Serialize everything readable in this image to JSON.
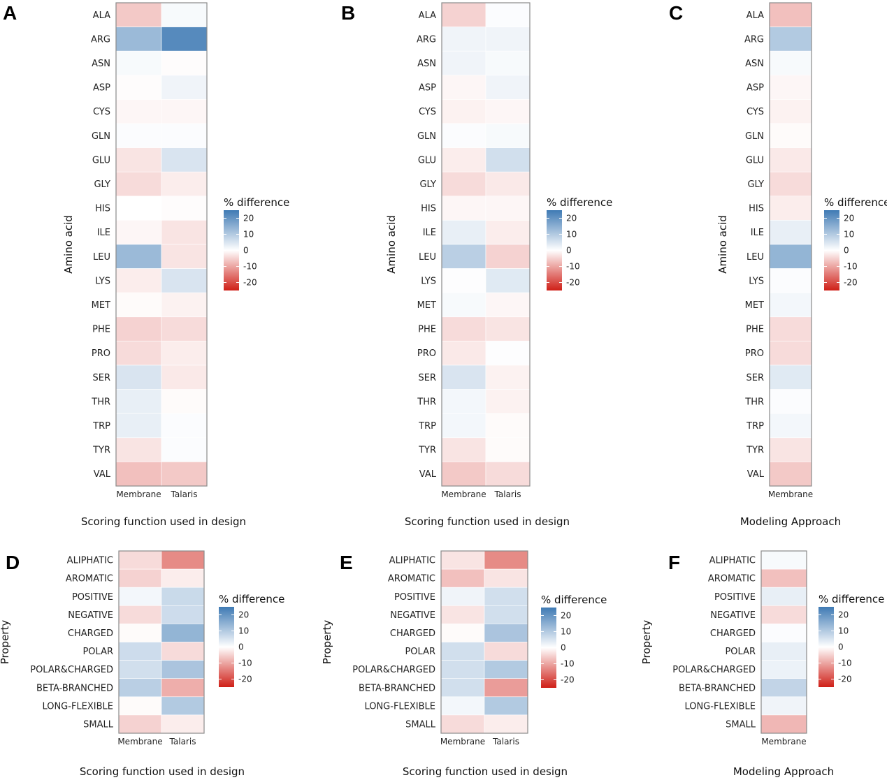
{
  "legend": {
    "title": "% difference",
    "ticks": [
      "20",
      "10",
      "0",
      "-10",
      "-20"
    ],
    "tick_values": [
      20,
      10,
      0,
      -10,
      -20
    ],
    "range": [
      -25,
      25
    ],
    "colors": {
      "high": "#3f7ab4",
      "mid": "#ffffff",
      "low": "#cf1f17"
    }
  },
  "panels": [
    {
      "letter": "A",
      "ylabel": "Amino acid",
      "xlabel": "Scoring function used in design",
      "chart_data": {
        "type": "heatmap",
        "x": [
          "Membrane",
          "Talaris"
        ],
        "y": [
          "ALA",
          "ARG",
          "ASN",
          "ASP",
          "CYS",
          "GLN",
          "GLU",
          "GLY",
          "HIS",
          "ILE",
          "LEU",
          "LYS",
          "MET",
          "PHE",
          "PRO",
          "SER",
          "THR",
          "TRP",
          "TYR",
          "VAL"
        ],
        "values": [
          [
            -6,
            1
          ],
          [
            13,
            22
          ],
          [
            1,
            -0.3
          ],
          [
            -0.3,
            2
          ],
          [
            -1,
            -1
          ],
          [
            0.5,
            0.5
          ],
          [
            -3,
            5
          ],
          [
            -4,
            -2
          ],
          [
            0,
            -0.3
          ],
          [
            -1,
            -3
          ],
          [
            13,
            -3
          ],
          [
            -2,
            5
          ],
          [
            -0.5,
            -1.5
          ],
          [
            -5,
            -4
          ],
          [
            -4,
            -2
          ],
          [
            5,
            -2.5
          ],
          [
            3,
            -0.5
          ],
          [
            3,
            0.5
          ],
          [
            -3,
            0.5
          ],
          [
            -7,
            -6
          ]
        ]
      }
    },
    {
      "letter": "B",
      "ylabel": "Amino acid",
      "xlabel": "Scoring function used in design",
      "chart_data": {
        "type": "heatmap",
        "x": [
          "Membrane",
          "Talaris"
        ],
        "y": [
          "ALA",
          "ARG",
          "ASN",
          "ASP",
          "CYS",
          "GLN",
          "GLU",
          "GLY",
          "HIS",
          "ILE",
          "LEU",
          "LYS",
          "MET",
          "PHE",
          "PRO",
          "SER",
          "THR",
          "TRP",
          "TYR",
          "VAL"
        ],
        "values": [
          [
            -5,
            0.5
          ],
          [
            2,
            2
          ],
          [
            2,
            1
          ],
          [
            -1,
            2
          ],
          [
            -1.5,
            -1
          ],
          [
            0.5,
            1
          ],
          [
            -2,
            6
          ],
          [
            -4,
            -2.5
          ],
          [
            -1,
            -1
          ],
          [
            3,
            -2
          ],
          [
            9,
            -5
          ],
          [
            0.3,
            4
          ],
          [
            1,
            -1
          ],
          [
            -4,
            -3
          ],
          [
            -2.5,
            0.3
          ],
          [
            5,
            -1.5
          ],
          [
            1.5,
            -1.5
          ],
          [
            1.5,
            -0.5
          ],
          [
            -3,
            -0.5
          ],
          [
            -6,
            -4
          ]
        ]
      }
    },
    {
      "letter": "C",
      "ylabel": "Amino acid",
      "xlabel": "Modeling Approach",
      "chart_data": {
        "type": "heatmap",
        "x": [
          "Membrane"
        ],
        "y": [
          "ALA",
          "ARG",
          "ASN",
          "ASP",
          "CYS",
          "GLN",
          "GLU",
          "GLY",
          "HIS",
          "ILE",
          "LEU",
          "LYS",
          "MET",
          "PHE",
          "PRO",
          "SER",
          "THR",
          "TRP",
          "TYR",
          "VAL"
        ],
        "values": [
          [
            -7
          ],
          [
            10
          ],
          [
            1
          ],
          [
            -1
          ],
          [
            -1.5
          ],
          [
            -0.5
          ],
          [
            -2.5
          ],
          [
            -4
          ],
          [
            -2
          ],
          [
            3
          ],
          [
            14
          ],
          [
            0.5
          ],
          [
            1.5
          ],
          [
            -4
          ],
          [
            -4
          ],
          [
            4
          ],
          [
            0.5
          ],
          [
            1.5
          ],
          [
            -3
          ],
          [
            -6
          ]
        ]
      }
    },
    {
      "letter": "D",
      "ylabel": "Property",
      "xlabel": "Scoring function used in design",
      "chart_data": {
        "type": "heatmap",
        "x": [
          "Membrane",
          "Talaris"
        ],
        "y": [
          "ALIPHATIC",
          "AROMATIC",
          "POSITIVE",
          "NEGATIVE",
          "CHARGED",
          "POLAR",
          "POLAR&CHARGED",
          "BETA-BRANCHED",
          "LONG-FLEXIBLE",
          "SMALL"
        ],
        "values": [
          [
            -4,
            -13
          ],
          [
            -5,
            -2
          ],
          [
            1.5,
            7
          ],
          [
            -4,
            6.5
          ],
          [
            -0.5,
            14
          ],
          [
            6.5,
            -4
          ],
          [
            6,
            11
          ],
          [
            9,
            -9
          ],
          [
            -0.5,
            10
          ],
          [
            -5,
            -2
          ]
        ]
      }
    },
    {
      "letter": "E",
      "ylabel": "Property",
      "xlabel": "Scoring function used in design",
      "chart_data": {
        "type": "heatmap",
        "x": [
          "Membrane",
          "Talaris"
        ],
        "y": [
          "ALIPHATIC",
          "AROMATIC",
          "POSITIVE",
          "NEGATIVE",
          "CHARGED",
          "POLAR",
          "POLAR&CHARGED",
          "BETA-BRANCHED",
          "LONG-FLEXIBLE",
          "SMALL"
        ],
        "values": [
          [
            -3,
            -13
          ],
          [
            -7,
            -3
          ],
          [
            2,
            6
          ],
          [
            -3,
            6
          ],
          [
            -0.5,
            11
          ],
          [
            6,
            -4
          ],
          [
            6,
            10
          ],
          [
            6,
            -11
          ],
          [
            1.5,
            10
          ],
          [
            -4,
            -2
          ]
        ]
      }
    },
    {
      "letter": "F",
      "ylabel": "Property",
      "xlabel": "Modeling Approach",
      "chart_data": {
        "type": "heatmap",
        "x": [
          "Membrane"
        ],
        "y": [
          "ALIPHATIC",
          "AROMATIC",
          "POSITIVE",
          "NEGATIVE",
          "CHARGED",
          "POLAR",
          "POLAR&CHARGED",
          "BETA-BRANCHED",
          "LONG-FLEXIBLE",
          "SMALL"
        ],
        "values": [
          [
            1
          ],
          [
            -7
          ],
          [
            3
          ],
          [
            -4
          ],
          [
            0.5
          ],
          [
            3
          ],
          [
            2.5
          ],
          [
            8
          ],
          [
            2
          ],
          [
            -8
          ]
        ]
      }
    }
  ]
}
